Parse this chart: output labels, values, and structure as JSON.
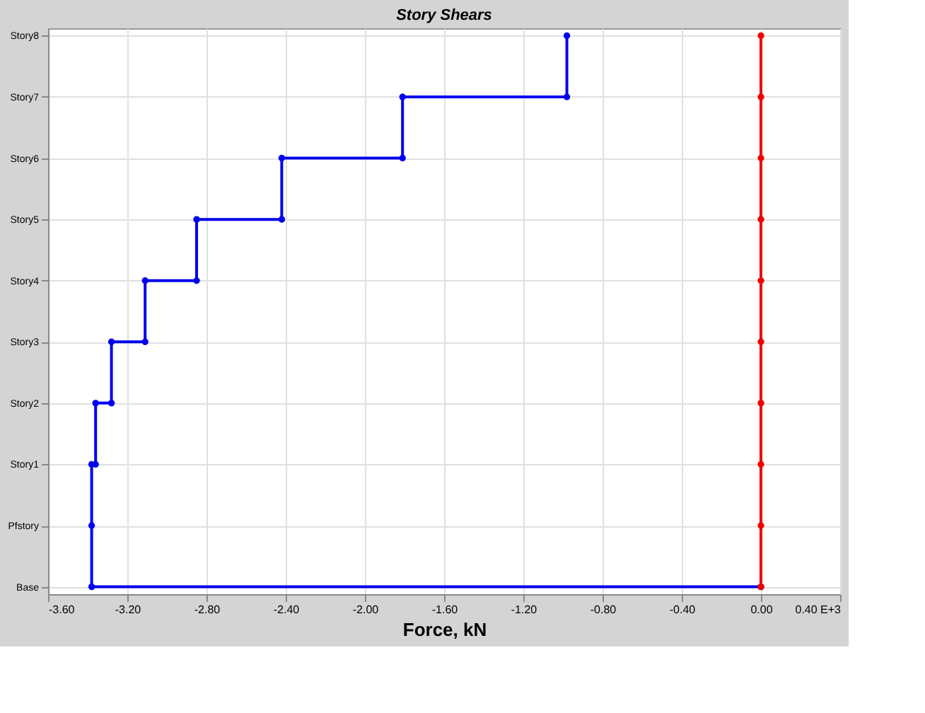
{
  "chart_data": {
    "type": "line",
    "orientation": "horizontal",
    "title": "Story Shears",
    "xlabel": "Force, kN",
    "categories": [
      "Story8",
      "Story7",
      "Story6",
      "Story5",
      "Story4",
      "Story3",
      "Story2",
      "Story1",
      "Pfstory",
      "Base"
    ],
    "xlim": [
      -3.6,
      0.4
    ],
    "xticks": [
      {
        "value": -3.6,
        "label": "-3.60"
      },
      {
        "value": -3.2,
        "label": "-3.20"
      },
      {
        "value": -2.8,
        "label": "-2.80"
      },
      {
        "value": -2.4,
        "label": "-2.40"
      },
      {
        "value": -2.0,
        "label": "-2.00"
      },
      {
        "value": -1.6,
        "label": "-1.60"
      },
      {
        "value": -1.2,
        "label": "-1.20"
      },
      {
        "value": -0.8,
        "label": "-0.80"
      },
      {
        "value": -0.4,
        "label": "-0.40"
      },
      {
        "value": 0,
        "label": "0.00"
      },
      {
        "value": 0.4,
        "label": "0.40 E+3"
      }
    ],
    "grid": true,
    "marker": "circle",
    "line_style": "solid",
    "series": [
      {
        "type": "step",
        "color": "#0000ee",
        "values": [
          -0.98,
          -1.81,
          -2.42,
          -2.85,
          -3.11,
          -3.28,
          -3.36,
          -3.38,
          -3.38,
          0
        ]
      },
      {
        "type": "scatter",
        "color": "#0000ee",
        "values": [
          null,
          -0.98,
          -1.81,
          -2.42,
          -2.85,
          -3.11,
          -3.28,
          -3.36,
          null,
          -3.38
        ]
      },
      {
        "color": "#ee0000",
        "values": [
          0,
          0,
          0,
          0,
          0,
          0,
          0,
          0,
          0,
          0
        ]
      }
    ]
  }
}
